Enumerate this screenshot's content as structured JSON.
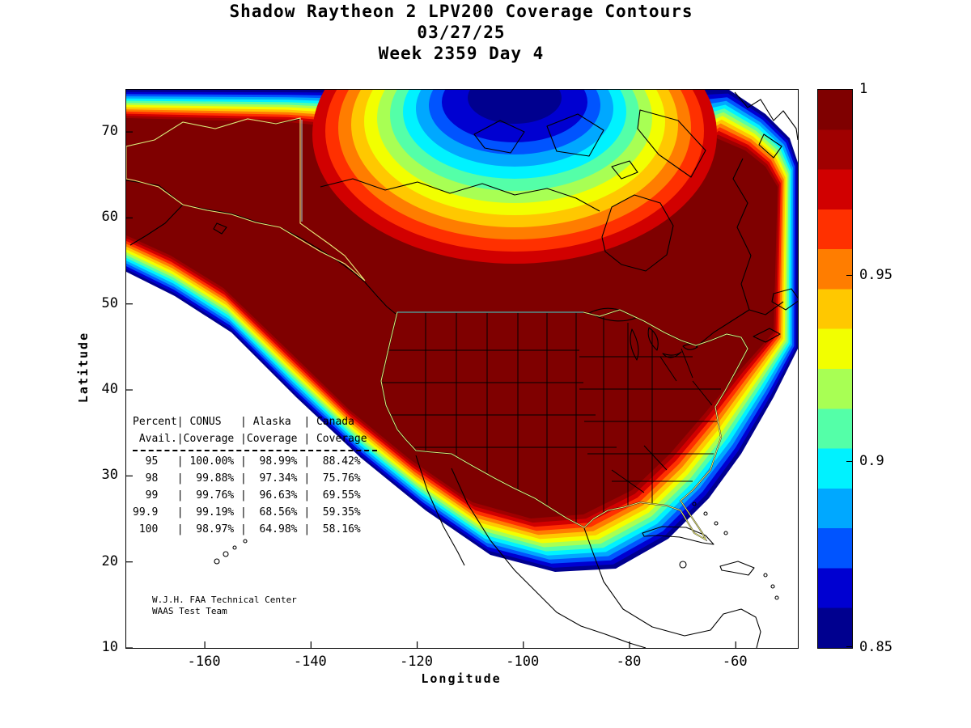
{
  "figure": {
    "title_line1": "Shadow Raytheon 2 LPV200 Coverage Contours",
    "title_line2": "03/27/25",
    "title_line3": "Week 2359 Day 4"
  },
  "axes": {
    "xlabel": "Longitude",
    "ylabel": "Latitude",
    "xticks": [
      -160,
      -140,
      -120,
      -100,
      -80,
      -60
    ],
    "yticks": [
      10,
      20,
      30,
      40,
      50,
      60,
      70
    ],
    "xrange": [
      -174.8,
      -48.3
    ],
    "yrange": [
      10,
      74.9
    ]
  },
  "colorbar": {
    "min": 0.85,
    "max": 1,
    "tick_labels": [
      "1",
      "0.95",
      "0.9",
      "0.85"
    ],
    "tick_values": [
      1,
      0.95,
      0.9,
      0.85
    ],
    "colors_top_to_bottom": [
      "#7f0000",
      "#a00000",
      "#d10000",
      "#ff3000",
      "#ff7d00",
      "#ffc800",
      "#f2ff00",
      "#a8ff54",
      "#54ffa8",
      "#00f2ff",
      "#00a8ff",
      "#0054ff",
      "#0000d1",
      "#00008f"
    ]
  },
  "coverage_table": {
    "header_row1": [
      "Percent",
      " CONUS   ",
      " Alaska  ",
      " Canada"
    ],
    "header_row2": [
      " Avail.",
      "Coverage ",
      "Coverage ",
      " Coverage"
    ],
    "columns": [
      "Percent Avail.",
      "CONUS Coverage",
      "Alaska Coverage",
      "Canada Coverage"
    ],
    "rows": [
      [
        "95",
        "100.00%",
        "98.99%",
        "88.42%"
      ],
      [
        "98",
        "99.88%",
        "97.34%",
        "75.76%"
      ],
      [
        "99",
        "99.76%",
        "96.63%",
        "69.55%"
      ],
      [
        "99.9",
        "99.19%",
        "68.56%",
        "59.35%"
      ],
      [
        "100",
        "98.97%",
        "64.98%",
        "58.16%"
      ]
    ]
  },
  "credit": {
    "line1": "W.J.H. FAA Technical Center",
    "line2": "WAAS Test Team"
  },
  "colors": {
    "background": "#ffffff",
    "axis": "#000000",
    "coastline": "#000000",
    "conus_border": "#e8e878",
    "light_border": "#9fd8d0"
  },
  "chart_data": {
    "type": "filled_contour_map",
    "title": "Shadow Raytheon 2 LPV200 Coverage Contours",
    "date": "03/27/25",
    "week_day": "Week 2359 Day 4",
    "region": "North America",
    "xlabel": "Longitude",
    "ylabel": "Latitude",
    "xlim": [
      -174.8,
      -48.3
    ],
    "ylim": [
      10,
      74.9
    ],
    "colorbar_range": [
      0.85,
      1
    ],
    "colorbar_ticks": [
      1,
      0.95,
      0.9,
      0.85
    ],
    "colormap": "jet",
    "features": "Dark-red core (availability ~1.0) covers CONUS, Alaska and most of Canada; values decay through the jet colormap toward 0.85 along the southern/oceanic edge and in an Arctic low centered near 105W/72N",
    "coverage_table": {
      "columns": [
        "Percent Avail.",
        "CONUS Coverage",
        "Alaska Coverage",
        "Canada Coverage"
      ],
      "rows": [
        [
          "95",
          "100.00%",
          "98.99%",
          "88.42%"
        ],
        [
          "98",
          "99.88%",
          "97.34%",
          "75.76%"
        ],
        [
          "99",
          "99.76%",
          "96.63%",
          "69.55%"
        ],
        [
          "99.9",
          "99.19%",
          "68.56%",
          "59.35%"
        ],
        [
          "100",
          "98.97%",
          "64.98%",
          "58.16%"
        ]
      ]
    }
  }
}
